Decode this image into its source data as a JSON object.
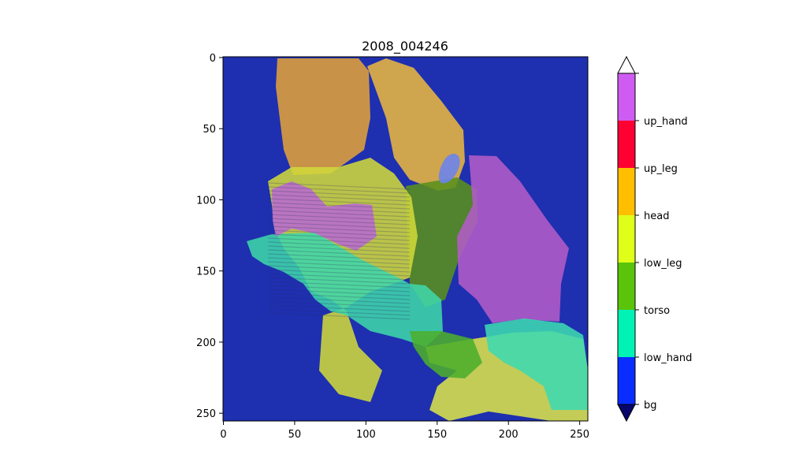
{
  "chart_data": {
    "type": "heatmap",
    "title": "2008_004246",
    "xlabel": "",
    "ylabel": "",
    "xlim": [
      0,
      256
    ],
    "ylim": [
      256,
      0
    ],
    "x_ticks": [
      0,
      50,
      100,
      150,
      200,
      250
    ],
    "y_ticks": [
      0,
      50,
      100,
      150,
      200,
      250
    ],
    "grid": false,
    "colorbar": {
      "extend": "both",
      "labels": [
        "bg",
        "low_hand",
        "torso",
        "low_leg",
        "head",
        "up_leg",
        "up_hand"
      ],
      "colors": [
        "#0a2dff",
        "#00f2b5",
        "#5ac40a",
        "#dfff1a",
        "#ffbf00",
        "#ff0033",
        "#cf5cf2"
      ],
      "under_color": "#06066b",
      "over_color": "#ffffff"
    },
    "segments": [
      {
        "label": "bg",
        "color": "#1e2fb0"
      },
      {
        "label": "head",
        "color": "#e0a23a"
      },
      {
        "label": "head",
        "color": "#e8b640"
      },
      {
        "label": "torso",
        "color": "#5a8f1c"
      },
      {
        "label": "low_leg",
        "color": "#cfd83a"
      },
      {
        "label": "low_hand",
        "color": "#3fd6a8"
      },
      {
        "label": "up_hand",
        "color": "#b35cc7"
      },
      {
        "label": "up_hand",
        "color": "#b86acf"
      },
      {
        "label": "low_leg",
        "color": "#d9e24a"
      },
      {
        "label": "low_hand",
        "color": "#3ed9b0"
      },
      {
        "label": "torso",
        "color": "#4cae2c"
      },
      {
        "label": "bg",
        "color": "#6a83f0"
      }
    ]
  }
}
